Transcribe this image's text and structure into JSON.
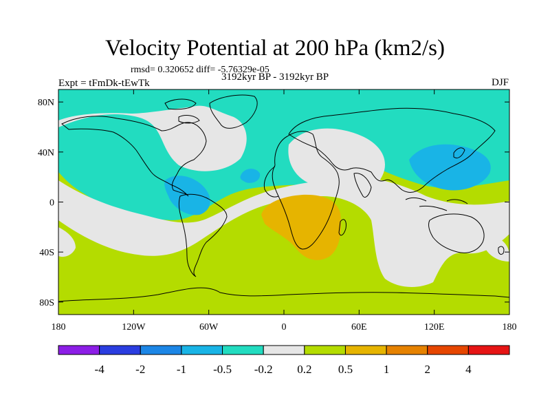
{
  "title": "Velocity Potential at 200 hPa (km2/s)",
  "stats_text": "rmsd= 0.320652 diff= -5.76329e-05",
  "experiment_label": "Expt = tFmDk-tEwTk",
  "period_label": "3192kyr BP - 3192kyr BP",
  "season_label": "DJF",
  "lat_ticks": [
    {
      "value": 80,
      "label": "80N"
    },
    {
      "value": 40,
      "label": "40N"
    },
    {
      "value": 0,
      "label": "0"
    },
    {
      "value": -40,
      "label": "40S"
    },
    {
      "value": -80,
      "label": "80S"
    }
  ],
  "lon_ticks": [
    {
      "value": -180,
      "label": "180"
    },
    {
      "value": -120,
      "label": "120W"
    },
    {
      "value": -60,
      "label": "60W"
    },
    {
      "value": 0,
      "label": "0"
    },
    {
      "value": 60,
      "label": "60E"
    },
    {
      "value": 120,
      "label": "120E"
    },
    {
      "value": 180,
      "label": "180"
    }
  ],
  "colorbar": {
    "colors": [
      "#8c1ee6",
      "#2a3de0",
      "#1c86e6",
      "#19b4e6",
      "#22dcc0",
      "#e6e6e6",
      "#b4dc00",
      "#e6b400",
      "#e68200",
      "#e64600",
      "#e61414"
    ],
    "labels": [
      "-4",
      "-2",
      "-1",
      "-0.5",
      "-0.2",
      "0.2",
      "0.5",
      "1",
      "2",
      "4"
    ]
  },
  "field_colors": {
    "neg_weak": "#22dcc0",
    "neg_mod": "#19b4e6",
    "neutral": "#e6e6e6",
    "pos_weak": "#b4dc00",
    "pos_mod": "#e6b400"
  }
}
